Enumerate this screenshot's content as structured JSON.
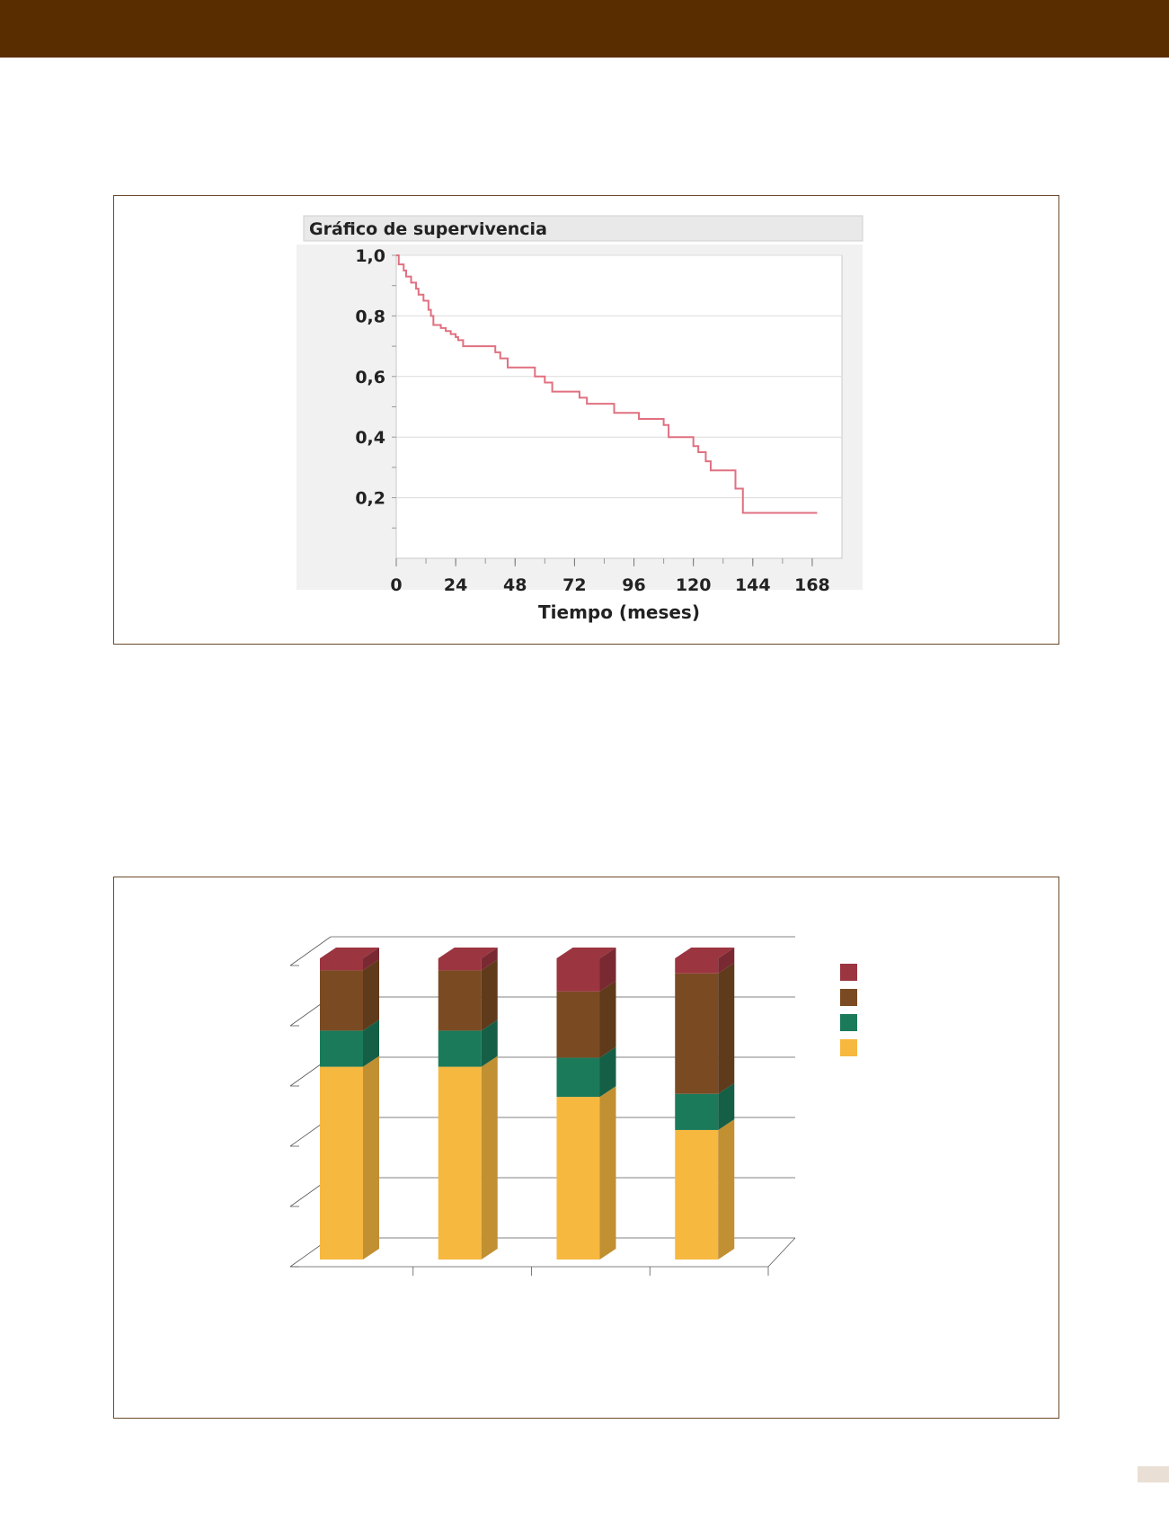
{
  "page": {
    "banner_color": "#5a2d00",
    "frame_color": "#6b4a2b",
    "page_tab_color": "#eadfd4"
  },
  "chart_data": [
    {
      "type": "line",
      "title": "Gráfico de supervivencia",
      "xlabel": "Tiempo (meses)",
      "ylabel": "",
      "xlim": [
        0,
        180
      ],
      "ylim": [
        0,
        1.0
      ],
      "x_ticks": [
        0,
        24,
        48,
        72,
        96,
        120,
        144,
        168
      ],
      "x_tick_labels": [
        "0",
        "24",
        "48",
        "72",
        "96",
        "120",
        "144",
        "168"
      ],
      "y_ticks": [
        0.2,
        0.4,
        0.6,
        0.8,
        1.0
      ],
      "y_tick_labels": [
        "0,2",
        "0,4",
        "0,6",
        "0,8",
        "1,0"
      ],
      "grid": true,
      "step": true,
      "line_color": "#e07080",
      "series": [
        {
          "x": [
            0,
            1,
            3,
            4,
            6,
            8,
            9,
            11,
            13,
            14,
            15,
            18,
            20,
            22,
            24,
            25,
            27,
            40,
            42,
            45,
            56,
            60,
            63,
            74,
            77,
            88,
            98,
            108,
            110,
            120,
            122,
            125,
            127,
            137,
            140,
            170
          ],
          "y": [
            1.0,
            0.97,
            0.95,
            0.93,
            0.91,
            0.89,
            0.87,
            0.85,
            0.82,
            0.8,
            0.77,
            0.76,
            0.75,
            0.74,
            0.73,
            0.72,
            0.7,
            0.68,
            0.66,
            0.63,
            0.6,
            0.58,
            0.55,
            0.53,
            0.51,
            0.48,
            0.46,
            0.44,
            0.4,
            0.37,
            0.35,
            0.32,
            0.29,
            0.23,
            0.15,
            0.15
          ]
        }
      ]
    },
    {
      "type": "bar",
      "stacked": true,
      "three_d": true,
      "categories": [
        "",
        "",
        "",
        ""
      ],
      "ylim": [
        0,
        100
      ],
      "y_ticks": [
        0,
        20,
        40,
        60,
        80,
        100
      ],
      "grid": true,
      "legend": "right",
      "series": [
        {
          "name": "",
          "color": "#f7b840",
          "values": [
            64,
            64,
            54,
            43
          ]
        },
        {
          "name": "",
          "color": "#1b7a5a",
          "values": [
            12,
            12,
            13,
            12
          ]
        },
        {
          "name": "",
          "color": "#7a4a22",
          "values": [
            20,
            20,
            22,
            40
          ]
        },
        {
          "name": "",
          "color": "#9b3540",
          "values": [
            4,
            4,
            11,
            5
          ]
        }
      ]
    }
  ]
}
